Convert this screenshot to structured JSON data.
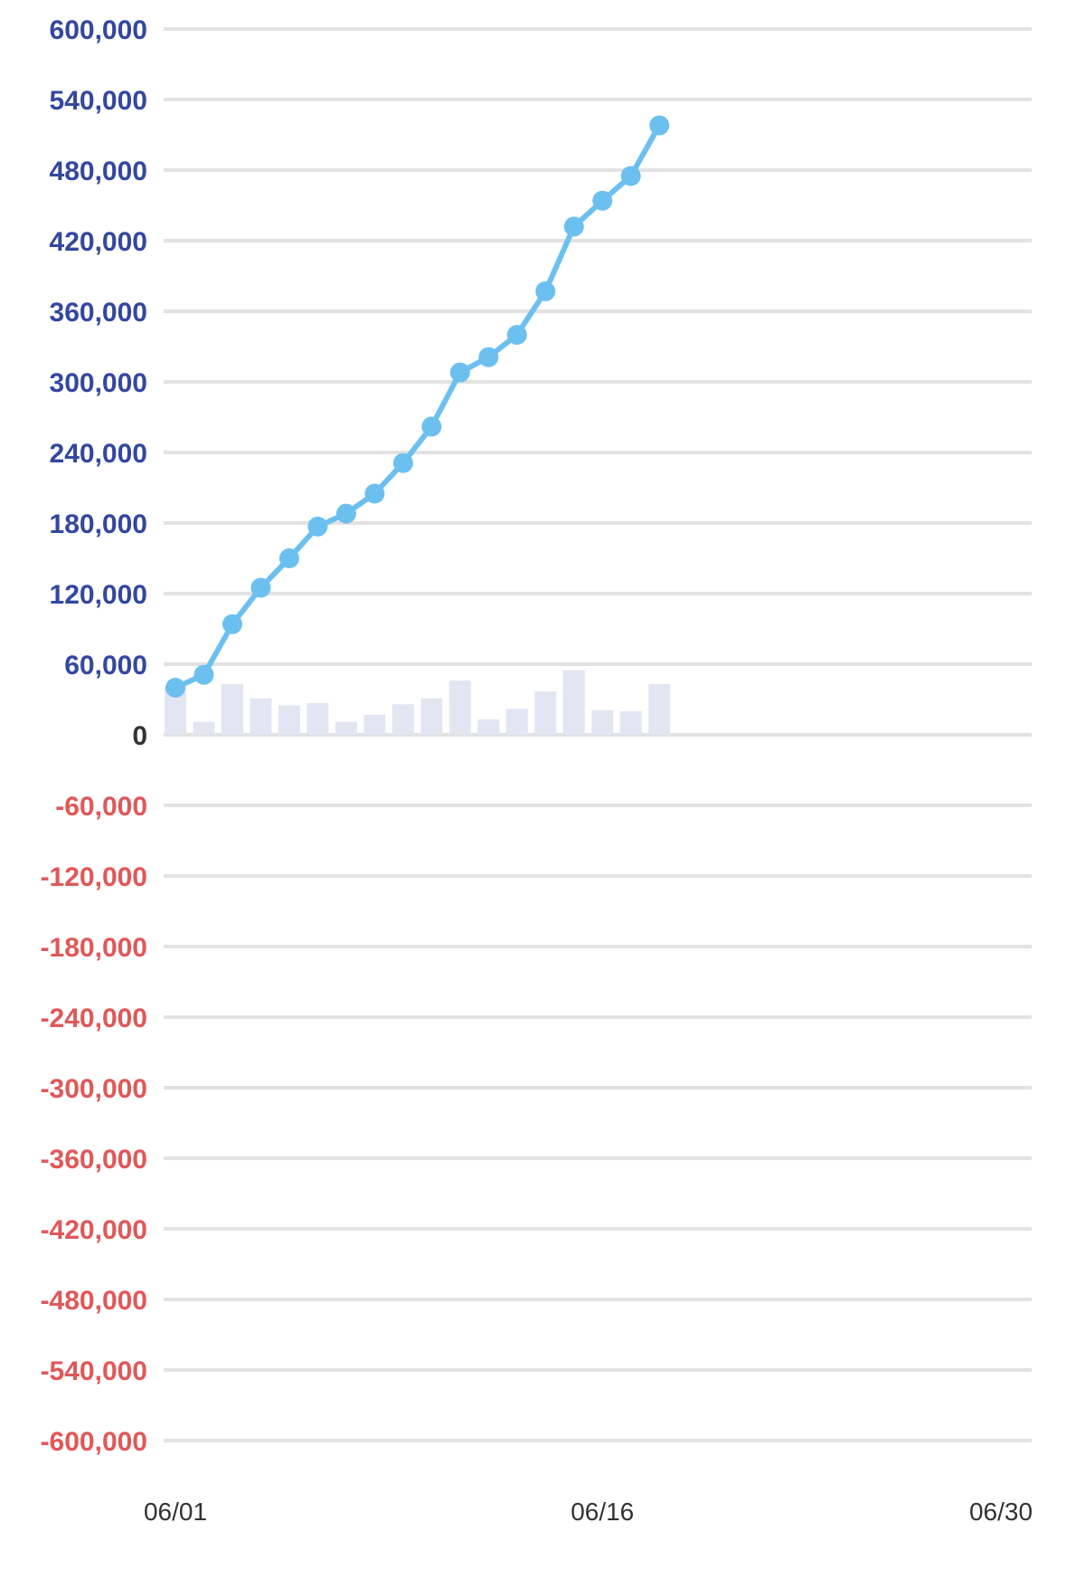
{
  "chart_data": {
    "type": "line",
    "x": [
      "06/01",
      "06/02",
      "06/03",
      "06/04",
      "06/05",
      "06/06",
      "06/07",
      "06/08",
      "06/09",
      "06/10",
      "06/11",
      "06/12",
      "06/13",
      "06/14",
      "06/15",
      "06/16",
      "06/17",
      "06/18"
    ],
    "x_range": [
      "06/01",
      "06/30"
    ],
    "x_tick_labels": [
      "06/01",
      "06/16",
      "06/30"
    ],
    "y_tick_labels": [
      "600,000",
      "540,000",
      "480,000",
      "420,000",
      "360,000",
      "300,000",
      "240,000",
      "180,000",
      "120,000",
      "60,000",
      "0",
      "-60,000",
      "-120,000",
      "-180,000",
      "-240,000",
      "-300,000",
      "-360,000",
      "-420,000",
      "-480,000",
      "-540,000",
      "-600,000"
    ],
    "ylim": [
      -600000,
      600000
    ],
    "grid": true,
    "series": [
      {
        "type": "line",
        "values": [
          40000,
          51000,
          94000,
          125000,
          150000,
          177000,
          188000,
          205000,
          231000,
          262000,
          308000,
          321000,
          340000,
          377000,
          432000,
          454000,
          475000,
          518000
        ]
      },
      {
        "type": "bar",
        "values": [
          40000,
          11000,
          43000,
          31000,
          25000,
          27000,
          11000,
          17000,
          26000,
          31000,
          46000,
          13000,
          22000,
          37000,
          55000,
          21000,
          20000,
          43000
        ]
      }
    ],
    "colors": {
      "line": "#6cc0f0",
      "bar": "#e2e6f2",
      "positive_tick": "#33479e",
      "zero_tick": "#333333",
      "negative_tick": "#e05858",
      "grid": "#e2e2e2"
    }
  }
}
